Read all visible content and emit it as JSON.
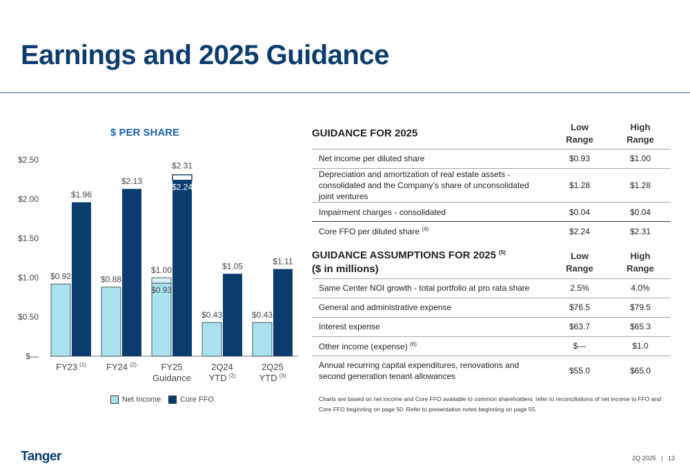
{
  "page": {
    "title": "Earnings and 2025 Guidance",
    "logo": "Tanger",
    "footer_period": "2Q 2025",
    "footer_sep": "|",
    "page_number": "13",
    "footnote": "Charts are based on net income and Core FFO available to common shareholders; refer to reconciliations of net income to FFO and Core FFO beginning on page 50. Refer to presentation notes beginning on page 55."
  },
  "chart_data": {
    "type": "bar",
    "title": "$ PER SHARE",
    "categories": [
      {
        "lines": [
          "FY23"
        ],
        "note": "(1)"
      },
      {
        "lines": [
          "FY24"
        ],
        "note": "(2)"
      },
      {
        "lines": [
          "FY25",
          "Guidance"
        ],
        "note": ""
      },
      {
        "lines": [
          "2Q24",
          "YTD"
        ],
        "note": "(2)"
      },
      {
        "lines": [
          "2Q25",
          "YTD"
        ],
        "note": "(3)"
      }
    ],
    "series": [
      {
        "name": "Net Income",
        "color": "#a9e2ee",
        "values": [
          0.92,
          0.88,
          0.93,
          0.43,
          0.43
        ],
        "labels": [
          "$0.92",
          "$0.88",
          "$0.93",
          "$0.43",
          "$0.43"
        ],
        "range_high": [
          null,
          null,
          1.0,
          null,
          null
        ],
        "range_high_labels": [
          null,
          null,
          "$1.00",
          null,
          null
        ]
      },
      {
        "name": "Core FFO",
        "color": "#0b3c6e",
        "values": [
          1.96,
          2.13,
          2.24,
          1.05,
          1.11
        ],
        "labels": [
          "$1.96",
          "$2.13",
          "$2.24",
          "$1.05",
          "$1.11"
        ],
        "range_high": [
          null,
          null,
          2.31,
          null,
          null
        ],
        "range_high_labels": [
          null,
          null,
          "$2.31",
          null,
          null
        ]
      }
    ],
    "yticks": [
      0,
      0.5,
      1.0,
      1.5,
      2.0,
      2.5
    ],
    "ytick_labels": [
      "$—",
      "$0.50",
      "$1.00",
      "$1.50",
      "$2.00",
      "$2.50"
    ],
    "ylim": [
      0,
      2.5
    ],
    "legend": "bottom"
  },
  "guidance": {
    "header": "GUIDANCE FOR 2025",
    "low_line1": "Low",
    "low_line2": "Range",
    "high_line1": "High",
    "high_line2": "Range",
    "rows": [
      {
        "label": "Net income per diluted share",
        "note": "",
        "low": "$0.93",
        "high": "$1.00"
      },
      {
        "label": "Depreciation and amortization of real estate assets - consolidated and the Company’s share of unconsolidated joint ventures",
        "note": "",
        "low": "$1.28",
        "high": "$1.28"
      },
      {
        "label": "Impairment charges - consolidated",
        "note": "",
        "low": "$0.04",
        "high": "$0.04"
      },
      {
        "label": "Core FFO per diluted share",
        "note": "(4)",
        "low": "$2.24",
        "high": "$2.31"
      }
    ]
  },
  "assumptions": {
    "header_line1": "GUIDANCE ASSUMPTIONS FOR 2025",
    "header_note": "(5)",
    "header_line2": "($ in millions)",
    "low_line1": "Low",
    "low_line2": "Range",
    "high_line1": "High",
    "high_line2": "Range",
    "rows": [
      {
        "label": "Same Center NOI growth - total portfolio at pro rata share",
        "note": "",
        "low": "2.5%",
        "high": "4.0%"
      },
      {
        "label": "General and administrative expense",
        "note": "",
        "low": "$76.5",
        "high": "$79.5"
      },
      {
        "label": "Interest expense",
        "note": "",
        "low": "$63.7",
        "high": "$65.3"
      },
      {
        "label": "Other income (expense)",
        "note": "(6)",
        "low": "$—",
        "high": "$1.0"
      },
      {
        "label": "Annual recurring capital expenditures, renovations and second generation tenant allowances",
        "note": "",
        "low": "$55.0",
        "high": "$65.0"
      }
    ]
  }
}
